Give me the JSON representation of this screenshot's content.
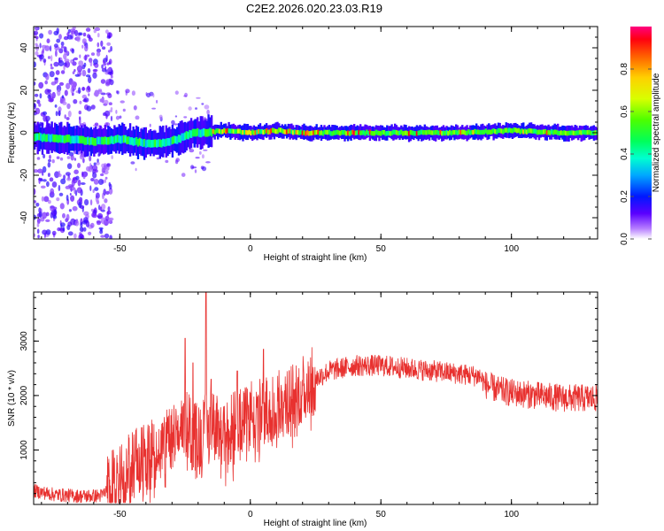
{
  "title": "C2E2.2026.020.23.03.R19",
  "chart_data": [
    {
      "type": "heatmap",
      "name": "spectrogram",
      "xlabel": "Height of straight line (km)",
      "ylabel": "Frequency (Hz)",
      "xlim": [
        -83,
        133
      ],
      "ylim": [
        -50,
        50
      ],
      "x_ticks": [
        -50,
        0,
        50,
        100
      ],
      "y_ticks": [
        -40,
        -20,
        0,
        20,
        40
      ],
      "colorbar": {
        "label": "Normalized spectral amplitude",
        "range": [
          0,
          1
        ],
        "ticks": [
          0.0,
          0.2,
          0.4,
          0.6,
          0.8
        ]
      },
      "ridge": {
        "description": "dominant frequency track",
        "x": [
          -83,
          -70,
          -60,
          -50,
          -40,
          -35,
          -28,
          -22,
          -18,
          -10,
          0,
          10,
          20,
          40,
          60,
          80,
          100,
          120,
          133
        ],
        "y": [
          -2,
          -3,
          -4,
          -3,
          -5,
          -5,
          -3,
          0,
          0,
          1,
          0,
          1,
          0,
          0,
          0,
          0,
          1,
          0,
          0
        ]
      }
    },
    {
      "type": "line",
      "name": "snr",
      "xlabel": "Height of straight line (km)",
      "ylabel": "SNR (10 * v/v)",
      "xlim": [
        -83,
        133
      ],
      "ylim": [
        0,
        3900
      ],
      "x_ticks": [
        -50,
        0,
        50,
        100
      ],
      "y_ticks": [
        1000,
        2000,
        3000
      ],
      "color": "#e8312f",
      "series": [
        {
          "name": "SNR",
          "x": [
            -83,
            -75,
            -65,
            -57,
            -50,
            -45,
            -40,
            -35,
            -30,
            -25,
            -20,
            -15,
            -10,
            -5,
            0,
            5,
            10,
            15,
            20,
            25,
            30,
            35,
            40,
            50,
            60,
            70,
            80,
            88,
            90,
            95,
            100,
            110,
            120,
            133
          ],
          "y": [
            250,
            180,
            150,
            160,
            500,
            750,
            850,
            1000,
            1250,
            1500,
            1250,
            1500,
            1250,
            1500,
            1650,
            1700,
            1800,
            1950,
            2100,
            2300,
            2450,
            2500,
            2550,
            2550,
            2500,
            2450,
            2400,
            2350,
            2200,
            2100,
            2050,
            2000,
            1950,
            1950
          ]
        }
      ],
      "spikes": {
        "x": [
          -25,
          -22,
          -17,
          -15,
          -5,
          5
        ],
        "y": [
          3050,
          2600,
          3900,
          2300,
          2450,
          2850
        ]
      }
    }
  ]
}
